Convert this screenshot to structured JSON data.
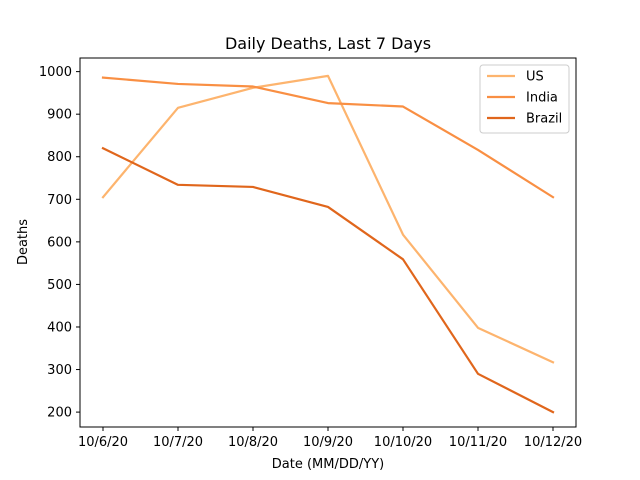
{
  "chart_data": {
    "type": "line",
    "title": "Daily Deaths, Last 7 Days",
    "xlabel": "Date (MM/DD/YY)",
    "ylabel": "Deaths",
    "categories": [
      "10/6/20",
      "10/7/20",
      "10/8/20",
      "10/9/20",
      "10/10/20",
      "10/11/20",
      "10/12/20"
    ],
    "ylim": [
      165,
      1032
    ],
    "yticks": [
      200,
      300,
      400,
      500,
      600,
      700,
      800,
      900,
      1000
    ],
    "grid": false,
    "legend_position": "top-right",
    "series": [
      {
        "name": "US",
        "color": "#fdb46e",
        "values": [
          705,
          915,
          962,
          990,
          617,
          398,
          317
        ]
      },
      {
        "name": "India",
        "color": "#f98f43",
        "values": [
          986,
          971,
          965,
          926,
          918,
          816,
          705
        ]
      },
      {
        "name": "Brazil",
        "color": "#e0661c",
        "values": [
          820,
          734,
          729,
          682,
          559,
          290,
          200
        ]
      }
    ]
  }
}
